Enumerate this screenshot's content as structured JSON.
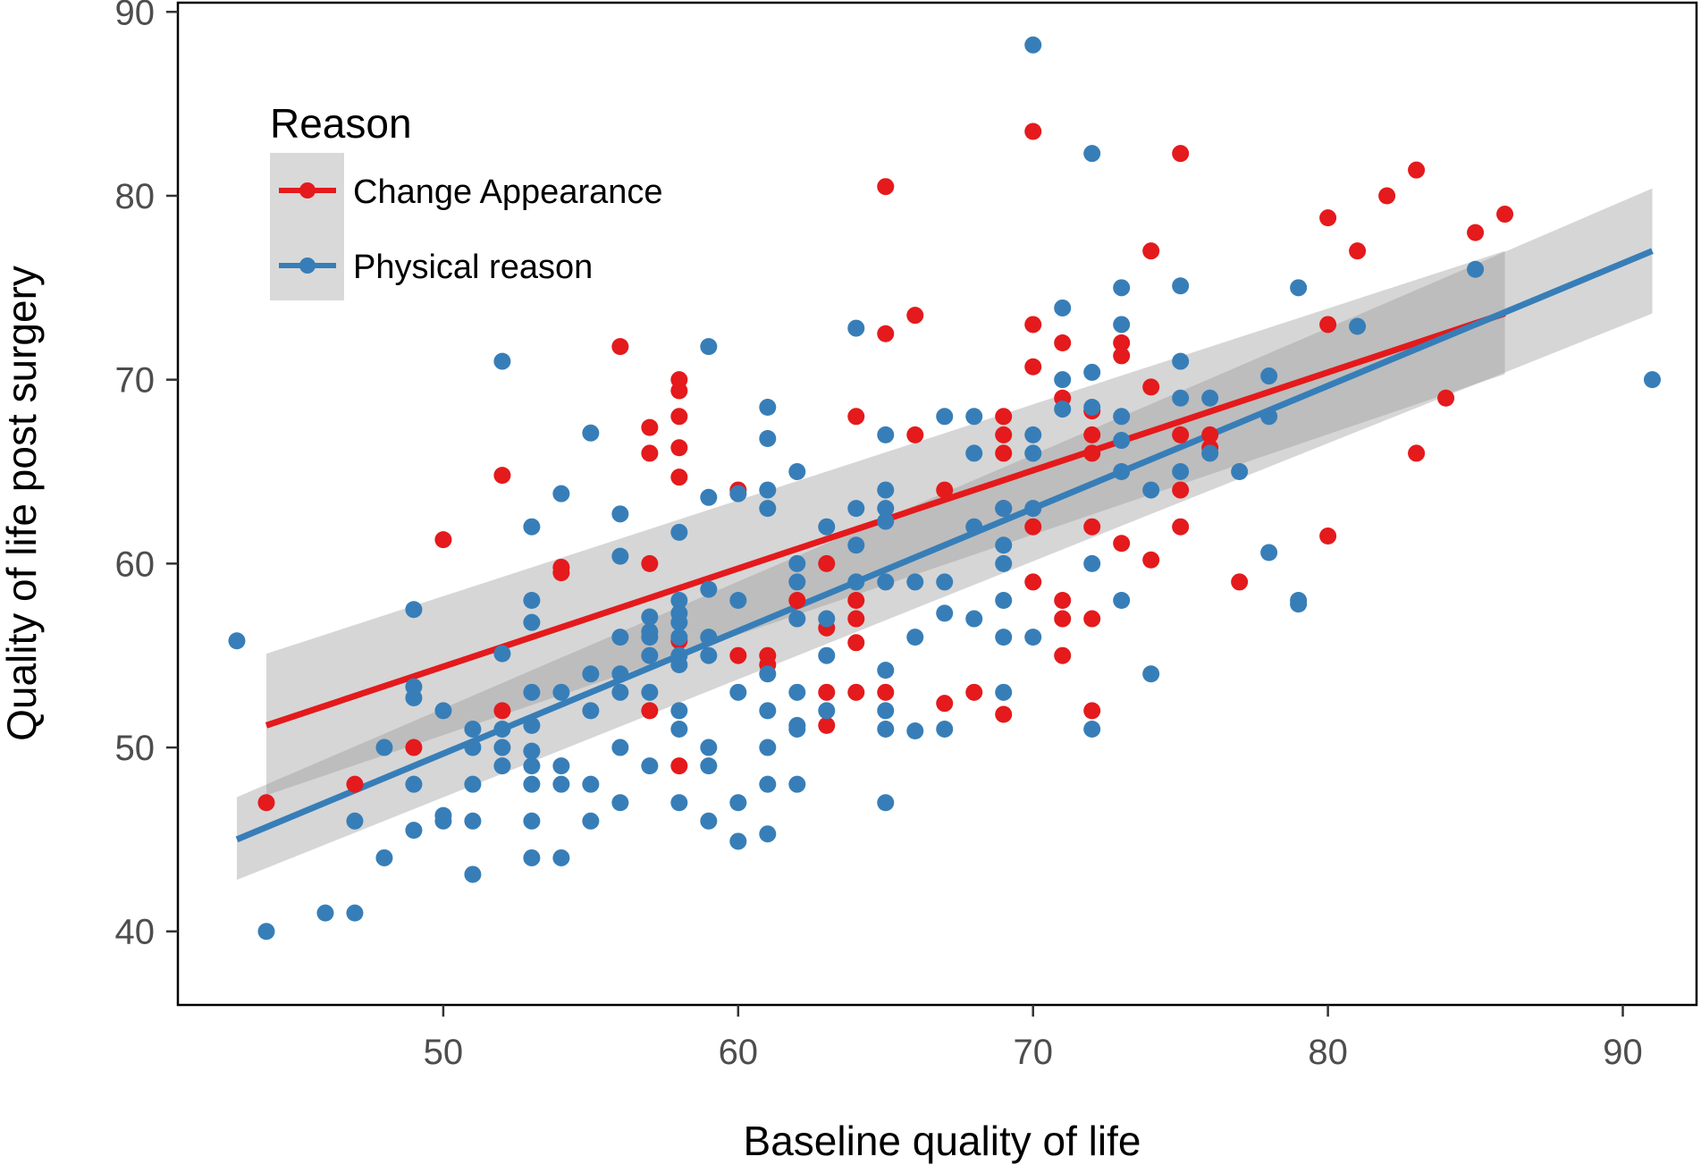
{
  "chart_data": {
    "type": "scatter",
    "title": "",
    "xlabel": "Baseline quality of life",
    "ylabel": "Quality of life post surgery",
    "xlim": [
      41,
      92.5
    ],
    "ylim": [
      36,
      90.5
    ],
    "xticks": [
      50,
      60,
      70,
      80,
      90
    ],
    "yticks": [
      40,
      50,
      60,
      70,
      80,
      90
    ],
    "grid": false,
    "legend": {
      "title": "Reason",
      "placement": "top-left"
    },
    "series": [
      {
        "name": "Change Appearance",
        "color": "#E41A1C",
        "points": [
          [
            44,
            47
          ],
          [
            47,
            48
          ],
          [
            49,
            50
          ],
          [
            50,
            61.3
          ],
          [
            52,
            64.8
          ],
          [
            52,
            52
          ],
          [
            54,
            59.8
          ],
          [
            54,
            59.5
          ],
          [
            56,
            71.8
          ],
          [
            57,
            67.4
          ],
          [
            57,
            66
          ],
          [
            57,
            60
          ],
          [
            57,
            52
          ],
          [
            58,
            70
          ],
          [
            58,
            69.4
          ],
          [
            58,
            68
          ],
          [
            58,
            66.3
          ],
          [
            58,
            64.7
          ],
          [
            58,
            55.8
          ],
          [
            58,
            49
          ],
          [
            60,
            64
          ],
          [
            60,
            55
          ],
          [
            61,
            55
          ],
          [
            61,
            54.5
          ],
          [
            62,
            58
          ],
          [
            63,
            60
          ],
          [
            63,
            56.5
          ],
          [
            63,
            53
          ],
          [
            63,
            51.2
          ],
          [
            64,
            68
          ],
          [
            64,
            58
          ],
          [
            64,
            57
          ],
          [
            64,
            55.7
          ],
          [
            64,
            53
          ],
          [
            65,
            80.5
          ],
          [
            65,
            72.5
          ],
          [
            65,
            53
          ],
          [
            66,
            73.5
          ],
          [
            66,
            67
          ],
          [
            67,
            64
          ],
          [
            67,
            52.4
          ],
          [
            68,
            53
          ],
          [
            69,
            68
          ],
          [
            69,
            67
          ],
          [
            69,
            66
          ],
          [
            69,
            63
          ],
          [
            69,
            51.8
          ],
          [
            70,
            83.5
          ],
          [
            70,
            73
          ],
          [
            70,
            70.7
          ],
          [
            70,
            62
          ],
          [
            70,
            59
          ],
          [
            71,
            72
          ],
          [
            71,
            69
          ],
          [
            71,
            58
          ],
          [
            71,
            57
          ],
          [
            71,
            55
          ],
          [
            72,
            68.3
          ],
          [
            72,
            67
          ],
          [
            72,
            66
          ],
          [
            72,
            62
          ],
          [
            72,
            57
          ],
          [
            72,
            52
          ],
          [
            73,
            72
          ],
          [
            73,
            71.3
          ],
          [
            73,
            61.1
          ],
          [
            74,
            77
          ],
          [
            74,
            69.6
          ],
          [
            74,
            60.2
          ],
          [
            75,
            82.3
          ],
          [
            75,
            67
          ],
          [
            75,
            64
          ],
          [
            75,
            62
          ],
          [
            76,
            67
          ],
          [
            76,
            66.3
          ],
          [
            77,
            59
          ],
          [
            80,
            78.8
          ],
          [
            80,
            73
          ],
          [
            80,
            61.5
          ],
          [
            81,
            77
          ],
          [
            82,
            80
          ],
          [
            83,
            81.4
          ],
          [
            83,
            66
          ],
          [
            84,
            69
          ],
          [
            85,
            78
          ],
          [
            86,
            79
          ]
        ],
        "fit": {
          "x": [
            44,
            86
          ],
          "y": [
            51.2,
            73.6
          ],
          "ci_low": [
            47.4,
            70.3
          ],
          "ci_high": [
            55.1,
            77.0
          ]
        }
      },
      {
        "name": "Physical reason",
        "color": "#377EB8",
        "points": [
          [
            43,
            55.8
          ],
          [
            44,
            40
          ],
          [
            46,
            41
          ],
          [
            47,
            41
          ],
          [
            47,
            46
          ],
          [
            48,
            44
          ],
          [
            48,
            50
          ],
          [
            49,
            57.5
          ],
          [
            49,
            53.3
          ],
          [
            49,
            52.7
          ],
          [
            49,
            48
          ],
          [
            49,
            45.5
          ],
          [
            50,
            52
          ],
          [
            50,
            46.3
          ],
          [
            50,
            46
          ],
          [
            51,
            51
          ],
          [
            51,
            50
          ],
          [
            51,
            48
          ],
          [
            51,
            46
          ],
          [
            51,
            43.1
          ],
          [
            52,
            71
          ],
          [
            52,
            55.1
          ],
          [
            52,
            51
          ],
          [
            52,
            50
          ],
          [
            52,
            49
          ],
          [
            53,
            62
          ],
          [
            53,
            58
          ],
          [
            53,
            56.8
          ],
          [
            53,
            53
          ],
          [
            53,
            51.2
          ],
          [
            53,
            49.8
          ],
          [
            53,
            49
          ],
          [
            53,
            48
          ],
          [
            53,
            46
          ],
          [
            53,
            44
          ],
          [
            54,
            63.8
          ],
          [
            54,
            53
          ],
          [
            54,
            49
          ],
          [
            54,
            48
          ],
          [
            54,
            44
          ],
          [
            55,
            67.1
          ],
          [
            55,
            54
          ],
          [
            55,
            52
          ],
          [
            55,
            48
          ],
          [
            55,
            46
          ],
          [
            56,
            62.7
          ],
          [
            56,
            60.4
          ],
          [
            56,
            56
          ],
          [
            56,
            54
          ],
          [
            56,
            53
          ],
          [
            56,
            50
          ],
          [
            56,
            47
          ],
          [
            57,
            57.1
          ],
          [
            57,
            56.3
          ],
          [
            57,
            56
          ],
          [
            57,
            55
          ],
          [
            57,
            53
          ],
          [
            57,
            49
          ],
          [
            58,
            61.7
          ],
          [
            58,
            58
          ],
          [
            58,
            57.3
          ],
          [
            58,
            56.8
          ],
          [
            58,
            56
          ],
          [
            58,
            55
          ],
          [
            58,
            54.5
          ],
          [
            58,
            52
          ],
          [
            58,
            51
          ],
          [
            58,
            47
          ],
          [
            59,
            71.8
          ],
          [
            59,
            63.6
          ],
          [
            59,
            58.6
          ],
          [
            59,
            56
          ],
          [
            59,
            55
          ],
          [
            59,
            50
          ],
          [
            59,
            49
          ],
          [
            59,
            46
          ],
          [
            60,
            63.8
          ],
          [
            60,
            58
          ],
          [
            60,
            53
          ],
          [
            60,
            47
          ],
          [
            60,
            44.9
          ],
          [
            61,
            68.5
          ],
          [
            61,
            66.8
          ],
          [
            61,
            64
          ],
          [
            61,
            63
          ],
          [
            61,
            54
          ],
          [
            61,
            52
          ],
          [
            61,
            50
          ],
          [
            61,
            48
          ],
          [
            61,
            45.3
          ],
          [
            62,
            65
          ],
          [
            62,
            60
          ],
          [
            62,
            59
          ],
          [
            62,
            57
          ],
          [
            62,
            53
          ],
          [
            62,
            51.2
          ],
          [
            62,
            51
          ],
          [
            62,
            48
          ],
          [
            63,
            62
          ],
          [
            63,
            57
          ],
          [
            63,
            55
          ],
          [
            63,
            52
          ],
          [
            64,
            72.8
          ],
          [
            64,
            63
          ],
          [
            64,
            61
          ],
          [
            64,
            59
          ],
          [
            65,
            64
          ],
          [
            65,
            63
          ],
          [
            65,
            62.3
          ],
          [
            65,
            59
          ],
          [
            65,
            54.2
          ],
          [
            65,
            52
          ],
          [
            65,
            51
          ],
          [
            65,
            47
          ],
          [
            65,
            67
          ],
          [
            66,
            59
          ],
          [
            66,
            56
          ],
          [
            66,
            50.9
          ],
          [
            67,
            68
          ],
          [
            67,
            59
          ],
          [
            67,
            57.3
          ],
          [
            67,
            51
          ],
          [
            68,
            68
          ],
          [
            68,
            66
          ],
          [
            68,
            62
          ],
          [
            68,
            57
          ],
          [
            69,
            63
          ],
          [
            69,
            61
          ],
          [
            69,
            60
          ],
          [
            69,
            58
          ],
          [
            69,
            56
          ],
          [
            69,
            53
          ],
          [
            70,
            88.2
          ],
          [
            70,
            67
          ],
          [
            70,
            66
          ],
          [
            70,
            63
          ],
          [
            70,
            56
          ],
          [
            71,
            73.9
          ],
          [
            71,
            70
          ],
          [
            71,
            68.4
          ],
          [
            72,
            82.3
          ],
          [
            72,
            70.4
          ],
          [
            72,
            68.5
          ],
          [
            72,
            60
          ],
          [
            72,
            51
          ],
          [
            73,
            75
          ],
          [
            73,
            73
          ],
          [
            73,
            68
          ],
          [
            73,
            66.7
          ],
          [
            73,
            65
          ],
          [
            73,
            58
          ],
          [
            74,
            64
          ],
          [
            74,
            54
          ],
          [
            75,
            75.1
          ],
          [
            75,
            71
          ],
          [
            75,
            69
          ],
          [
            75,
            65
          ],
          [
            76,
            69
          ],
          [
            76,
            66
          ],
          [
            77,
            65
          ],
          [
            78,
            70.2
          ],
          [
            78,
            68
          ],
          [
            78,
            60.6
          ],
          [
            79,
            75
          ],
          [
            79,
            58
          ],
          [
            79,
            57.8
          ],
          [
            81,
            72.9
          ],
          [
            85,
            76
          ],
          [
            91,
            70
          ]
        ],
        "fit": {
          "x": [
            43,
            91
          ],
          "y": [
            45.0,
            77.0
          ],
          "ci_low": [
            42.8,
            73.6
          ],
          "ci_high": [
            47.3,
            80.4
          ]
        }
      }
    ]
  }
}
